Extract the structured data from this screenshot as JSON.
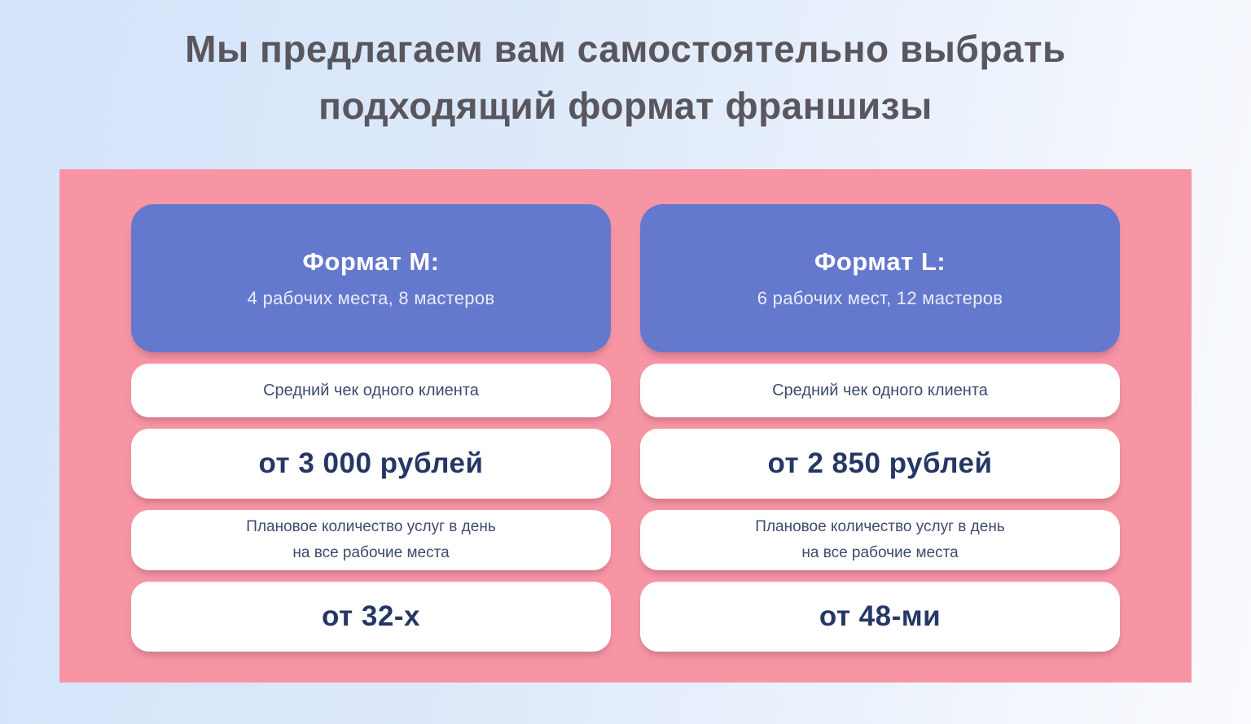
{
  "title": {
    "line1": "Мы предлагаем вам самостоятельно выбрать",
    "line2": "подходящий формат франшизы"
  },
  "columns": [
    {
      "header": {
        "title": "Формат M:",
        "subtitle": "4 рабочих места, 8 мастеров"
      },
      "avg_check_label": "Средний чек одного клиента",
      "avg_check_value": "от 3 000 рублей",
      "planned_services_label_line1": "Плановое количество услуг в день",
      "planned_services_label_line2": "на все рабочие места",
      "planned_services_value": "от 32-х"
    },
    {
      "header": {
        "title": "Формат L:",
        "subtitle": "6 рабочих мест, 12 мастеров"
      },
      "avg_check_label": "Средний чек одного клиента",
      "avg_check_value": "от 2 850 рублей",
      "planned_services_label_line1": "Плановое количество услуг в день",
      "planned_services_label_line2": "на все рабочие места",
      "planned_services_value": "от 48-ми"
    }
  ],
  "colors": {
    "panel_pink": "#f795a5",
    "header_blue": "#6478cd",
    "card_white": "#ffffff",
    "title_gray": "#59565e",
    "label_navy": "#3d4b6e",
    "value_navy": "#253765",
    "background_blue": "#d3e4f9",
    "background_white": "#fafbfe"
  }
}
